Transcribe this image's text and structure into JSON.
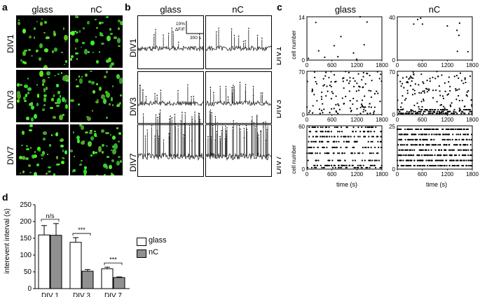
{
  "panel_labels": {
    "a": "a",
    "b": "b",
    "c": "c",
    "d": "d"
  },
  "conditions": [
    "glass",
    "nC"
  ],
  "div_rows": [
    "DIV1",
    "DIV3",
    "DIV7"
  ],
  "scalebar": {
    "amplitude": "10%",
    "amplitude_unit": "ΔF/F",
    "time": "300 s"
  },
  "raster": {
    "ylabel": "cell number",
    "xlabel": "time (s)",
    "xticks": [
      "0",
      "600",
      "1200",
      "1800"
    ],
    "xlim": [
      0,
      1800
    ],
    "ymax": {
      "DIV1": [
        14,
        40
      ],
      "DIV3": [
        70,
        70
      ],
      "DIV7": [
        60,
        25
      ]
    }
  },
  "chart_data": {
    "type": "bar",
    "categories": [
      "DIV 1",
      "DIV 3",
      "DIV 7"
    ],
    "series": [
      {
        "name": "glass",
        "values": [
          160,
          138,
          59
        ],
        "errors": [
          28,
          14,
          5
        ],
        "color": "#ffffff"
      },
      {
        "name": "nC",
        "values": [
          159,
          52,
          33
        ],
        "errors": [
          35,
          5,
          2
        ],
        "color": "#909090"
      }
    ],
    "ylabel": "interevent interval (s)",
    "ylim": [
      0,
      250
    ],
    "yticks": [
      0,
      50,
      100,
      150,
      200,
      250
    ],
    "significance": [
      "n/s",
      "***",
      "***"
    ],
    "legend_position": "right"
  }
}
